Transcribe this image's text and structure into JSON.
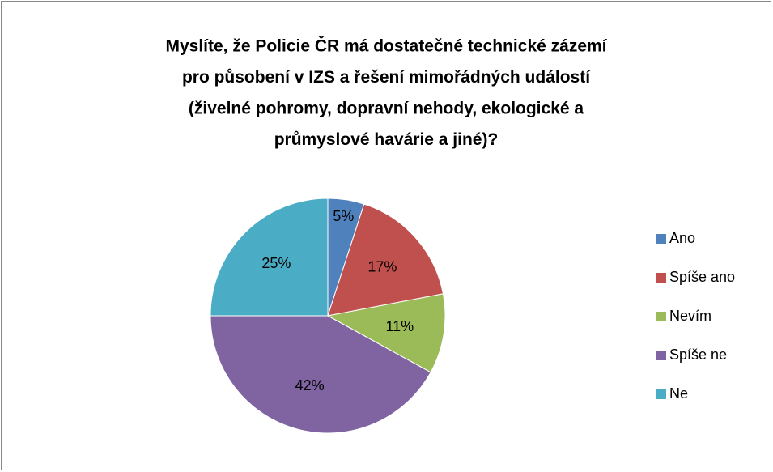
{
  "chart_data": {
    "type": "pie",
    "title": [
      "Myslíte, že Policie ČR má dostatečné technické zázemí",
      "pro působení v IZS a řešení mimořádných událostí",
      "(živelné pohromy, dopravní nehody, ekologické a",
      "průmyslové havárie a jiné)?"
    ],
    "categories": [
      "Ano",
      "Spíše ano",
      "Nevím",
      "Spíše ne",
      "Ne"
    ],
    "values": [
      5,
      17,
      11,
      42,
      25
    ],
    "value_labels": [
      "5%",
      "17%",
      "11%",
      "42%",
      "25%"
    ],
    "colors": [
      "#4f81bd",
      "#c0504d",
      "#9bbb59",
      "#8064a2",
      "#4bacc6"
    ],
    "legend": "right"
  }
}
